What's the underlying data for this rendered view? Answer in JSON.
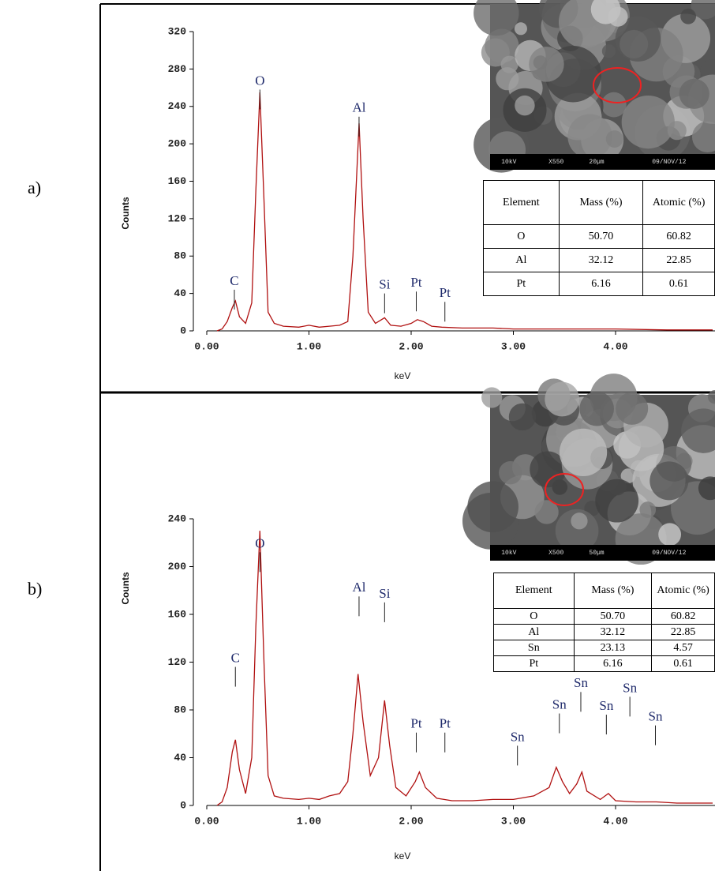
{
  "panel_labels": [
    "a)",
    "b)"
  ],
  "chart_data": [
    {
      "type": "line",
      "x_label": "keV",
      "y_label": "Counts",
      "color": "#b01010",
      "xlim": [
        0,
        5
      ],
      "ylim": [
        0,
        320
      ],
      "xticks": [
        {
          "value": 0,
          "label": "0.00"
        },
        {
          "value": 1,
          "label": "1.00"
        },
        {
          "value": 2,
          "label": "2.00"
        },
        {
          "value": 3,
          "label": "3.00"
        },
        {
          "value": 4,
          "label": "4.00"
        }
      ],
      "yticks": [
        0,
        40,
        80,
        120,
        160,
        200,
        240,
        280,
        320
      ],
      "x": [
        0.1,
        0.15,
        0.2,
        0.25,
        0.28,
        0.32,
        0.38,
        0.44,
        0.48,
        0.52,
        0.56,
        0.6,
        0.66,
        0.75,
        0.9,
        1.0,
        1.1,
        1.2,
        1.3,
        1.38,
        1.43,
        1.49,
        1.53,
        1.58,
        1.65,
        1.74,
        1.8,
        1.9,
        2.0,
        2.06,
        2.12,
        2.2,
        2.3,
        2.5,
        2.8,
        3.0,
        3.5,
        4.0,
        4.5,
        4.95
      ],
      "values": [
        0,
        2,
        10,
        25,
        32,
        15,
        8,
        30,
        150,
        255,
        140,
        20,
        8,
        5,
        4,
        6,
        4,
        5,
        6,
        10,
        80,
        222,
        120,
        20,
        8,
        14,
        6,
        5,
        8,
        12,
        10,
        5,
        4,
        3,
        3,
        2,
        2,
        2,
        1,
        1
      ],
      "annotations": [
        {
          "text": "C",
          "x": 0.27,
          "y": 44
        },
        {
          "text": "O",
          "x": 0.52,
          "y": 258
        },
        {
          "text": "Al",
          "x": 1.49,
          "y": 229
        },
        {
          "text": "Si",
          "x": 1.74,
          "y": 40
        },
        {
          "text": "Pt",
          "x": 2.05,
          "y": 42
        },
        {
          "text": "Pt",
          "x": 2.33,
          "y": 31
        }
      ]
    },
    {
      "type": "line",
      "x_label": "keV",
      "y_label": "Counts",
      "color": "#b01010",
      "xlim": [
        0,
        5
      ],
      "ylim": [
        0,
        240
      ],
      "xticks": [
        {
          "value": 0,
          "label": "0.00"
        },
        {
          "value": 1,
          "label": "1.00"
        },
        {
          "value": 2,
          "label": "2.00"
        },
        {
          "value": 3,
          "label": "3.00"
        },
        {
          "value": 4,
          "label": "4.00"
        }
      ],
      "yticks": [
        0,
        40,
        80,
        120,
        160,
        200,
        240
      ],
      "x": [
        0.1,
        0.15,
        0.2,
        0.25,
        0.28,
        0.32,
        0.38,
        0.44,
        0.48,
        0.52,
        0.56,
        0.6,
        0.66,
        0.75,
        0.9,
        1.0,
        1.1,
        1.2,
        1.3,
        1.38,
        1.43,
        1.48,
        1.53,
        1.6,
        1.68,
        1.74,
        1.79,
        1.85,
        1.95,
        2.04,
        2.08,
        2.14,
        2.25,
        2.4,
        2.6,
        2.8,
        3.0,
        3.2,
        3.35,
        3.42,
        3.48,
        3.55,
        3.62,
        3.67,
        3.72,
        3.85,
        3.93,
        4.0,
        4.2,
        4.4,
        4.6,
        4.95
      ],
      "values": [
        0,
        3,
        15,
        45,
        55,
        30,
        10,
        40,
        150,
        230,
        120,
        25,
        8,
        6,
        5,
        6,
        5,
        8,
        10,
        20,
        60,
        110,
        70,
        25,
        40,
        88,
        50,
        15,
        8,
        20,
        28,
        15,
        6,
        4,
        4,
        5,
        5,
        8,
        15,
        32,
        20,
        10,
        18,
        28,
        12,
        5,
        10,
        4,
        3,
        3,
        2,
        2
      ],
      "annotations": [
        {
          "text": "C",
          "x": 0.28,
          "y": 116
        },
        {
          "text": "O",
          "x": 0.52,
          "y": 212
        },
        {
          "text": "Al",
          "x": 1.49,
          "y": 175
        },
        {
          "text": "Si",
          "x": 1.74,
          "y": 170
        },
        {
          "text": "Pt",
          "x": 2.05,
          "y": 61
        },
        {
          "text": "Pt",
          "x": 2.33,
          "y": 61
        },
        {
          "text": "Sn",
          "x": 3.04,
          "y": 50
        },
        {
          "text": "Sn",
          "x": 3.45,
          "y": 77
        },
        {
          "text": "Sn",
          "x": 3.66,
          "y": 95
        },
        {
          "text": "Sn",
          "x": 3.91,
          "y": 76
        },
        {
          "text": "Sn",
          "x": 4.14,
          "y": 91
        },
        {
          "text": "Sn",
          "x": 4.39,
          "y": 67
        }
      ]
    }
  ],
  "sem_labels": [
    [
      "10kV",
      "X550",
      "20µm",
      "09/NOV/12"
    ],
    [
      "10kV",
      "X500",
      "50µm",
      "09/NOV/12"
    ]
  ],
  "tables": [
    {
      "header": [
        "Element",
        "Mass (%)",
        "Atomic (%)"
      ],
      "rows": [
        [
          "O",
          "50.70",
          "60.82"
        ],
        [
          "Al",
          "32.12",
          "22.85"
        ],
        [
          "Pt",
          "6.16",
          "0.61"
        ]
      ]
    },
    {
      "header": [
        "Element",
        "Mass (%)",
        "Atomic (%)"
      ],
      "rows": [
        [
          "O",
          "50.70",
          "60.82"
        ],
        [
          "Al",
          "32.12",
          "22.85"
        ],
        [
          "Sn",
          "23.13",
          "4.57"
        ],
        [
          "Pt",
          "6.16",
          "0.61"
        ]
      ]
    }
  ]
}
